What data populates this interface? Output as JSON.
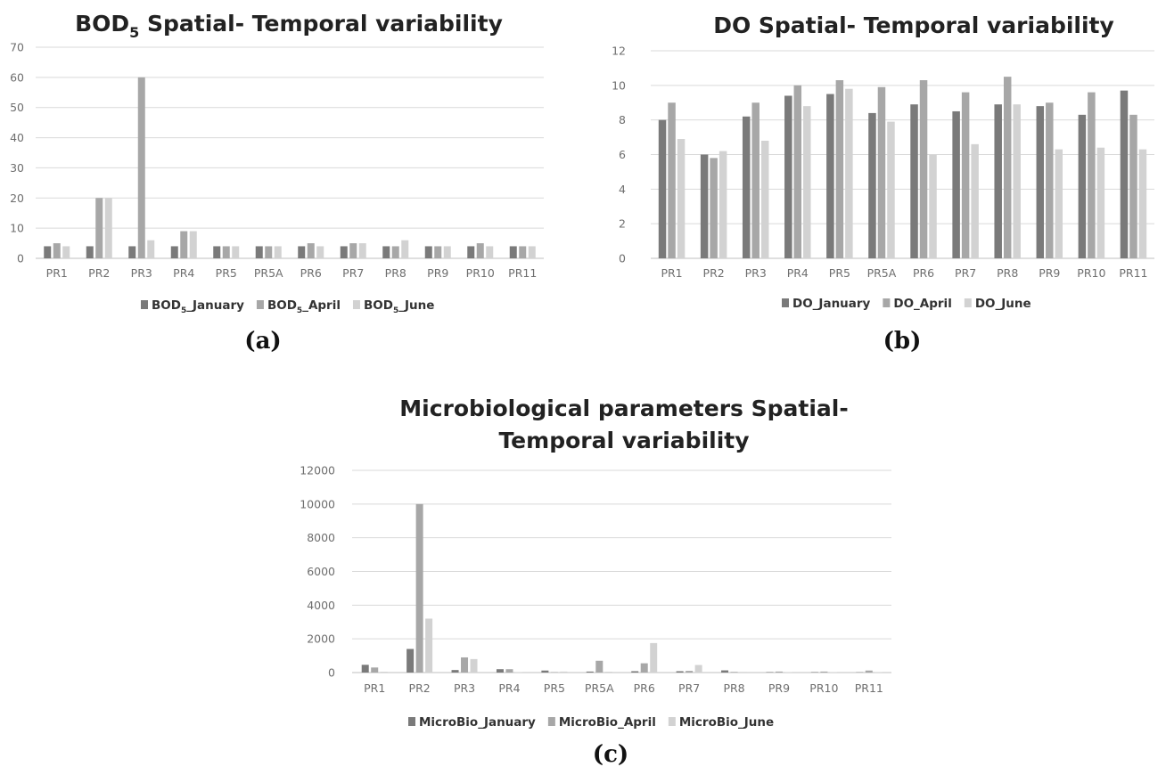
{
  "colors": {
    "january": "#7a7a7a",
    "april": "#a7a7a7",
    "june": "#d2d2d2",
    "grid": "#d9d9d9",
    "axis": "#bfbfbf"
  },
  "panels": [
    {
      "label": "(a)"
    },
    {
      "label": "(b)"
    },
    {
      "label": "(c)"
    }
  ],
  "chart_data": [
    {
      "type": "bar",
      "title": "BOD5 Spatial- Temporal variability",
      "title_main": "BOD",
      "title_sub": "5",
      "title_rest": " Spatial- Temporal variability",
      "categories": [
        "PR1",
        "PR2",
        "PR3",
        "PR4",
        "PR5",
        "PR5A",
        "PR6",
        "PR7",
        "PR8",
        "PR9",
        "PR10",
        "PR11"
      ],
      "ylim": [
        0,
        70
      ],
      "yticks": [
        "0",
        "10",
        "20",
        "30",
        "40",
        "50",
        "60",
        "70"
      ],
      "grid": true,
      "legend_position": "bottom",
      "series": [
        {
          "name": "BOD5_January",
          "legend_main": "BOD",
          "legend_sub": "5",
          "legend_rest": "_January",
          "values": [
            4,
            4,
            4,
            4,
            4,
            4,
            4,
            4,
            4,
            4,
            4,
            4
          ]
        },
        {
          "name": "BOD5_April",
          "legend_main": "BOD",
          "legend_sub": "5",
          "legend_rest": "_April",
          "values": [
            5,
            20,
            60,
            9,
            4,
            4,
            5,
            5,
            4,
            4,
            5,
            4
          ]
        },
        {
          "name": "BOD5_June",
          "legend_main": "BOD",
          "legend_sub": "5",
          "legend_rest": "_June",
          "values": [
            4,
            20,
            6,
            9,
            4,
            4,
            4,
            5,
            6,
            4,
            4,
            4
          ]
        }
      ]
    },
    {
      "type": "bar",
      "title": "DO Spatial- Temporal variability",
      "categories": [
        "PR1",
        "PR2",
        "PR3",
        "PR4",
        "PR5",
        "PR5A",
        "PR6",
        "PR7",
        "PR8",
        "PR9",
        "PR10",
        "PR11"
      ],
      "ylim": [
        0,
        12
      ],
      "yticks": [
        "0",
        "2",
        "4",
        "6",
        "8",
        "10",
        "12"
      ],
      "grid": true,
      "legend_position": "bottom",
      "series": [
        {
          "name": "DO_January",
          "values": [
            8.0,
            6.0,
            8.2,
            9.4,
            9.5,
            8.4,
            8.9,
            8.5,
            8.9,
            8.8,
            8.3,
            9.7
          ]
        },
        {
          "name": "DO_April",
          "values": [
            9.0,
            5.8,
            9.0,
            10.0,
            10.3,
            9.9,
            10.3,
            9.6,
            10.5,
            9.0,
            9.6,
            8.3
          ]
        },
        {
          "name": "DO_June",
          "values": [
            6.9,
            6.2,
            6.8,
            8.8,
            9.8,
            7.9,
            6.0,
            6.6,
            8.9,
            6.3,
            6.4,
            6.3
          ]
        }
      ]
    },
    {
      "type": "bar",
      "title": "Microbiological parameters Spatial- Temporal variability",
      "title_line1": "Microbiological parameters Spatial-",
      "title_line2": "Temporal variability",
      "categories": [
        "PR1",
        "PR2",
        "PR3",
        "PR4",
        "PR5",
        "PR5A",
        "PR6",
        "PR7",
        "PR8",
        "PR9",
        "PR10",
        "PR11"
      ],
      "ylim": [
        0,
        12000
      ],
      "yticks": [
        "0",
        "2000",
        "4000",
        "6000",
        "8000",
        "10000",
        "12000"
      ],
      "grid": true,
      "legend_position": "bottom",
      "series": [
        {
          "name": "MicroBio_January",
          "values": [
            460,
            1400,
            150,
            200,
            120,
            60,
            80,
            80,
            130,
            30,
            30,
            20
          ]
        },
        {
          "name": "MicroBio_April",
          "values": [
            300,
            10000,
            900,
            200,
            30,
            700,
            550,
            100,
            40,
            60,
            60,
            120
          ]
        },
        {
          "name": "MicroBio_June",
          "values": [
            50,
            3200,
            800,
            30,
            60,
            50,
            1750,
            450,
            40,
            20,
            30,
            30
          ]
        }
      ]
    }
  ]
}
